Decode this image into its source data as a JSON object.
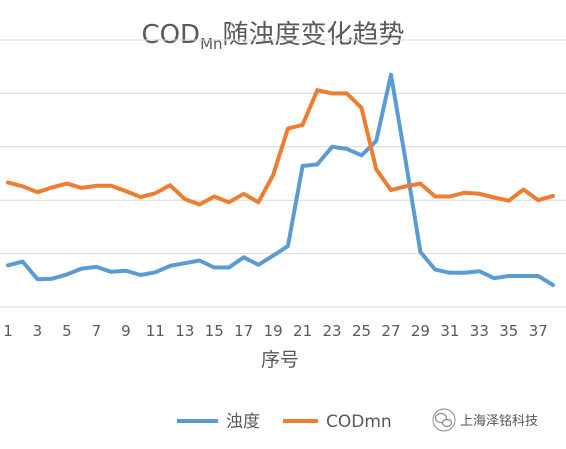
{
  "colors": {
    "turbidity": "#5B9BD5",
    "codmn": "#ED7D31",
    "grid": "#D9D9D9",
    "text": "#595959"
  },
  "watermark": {
    "icon": "wechat-icon",
    "text": "上海泽铭科技"
  },
  "chart_data": {
    "type": "line",
    "title": {
      "main": "COD",
      "subscript": "Mn",
      "rest": "随浊度变化趋势"
    },
    "xlabel": "序号",
    "ylabel": "",
    "x": [
      1,
      2,
      3,
      4,
      5,
      6,
      7,
      8,
      9,
      10,
      11,
      12,
      13,
      14,
      15,
      16,
      17,
      18,
      19,
      20,
      21,
      22,
      23,
      24,
      25,
      26,
      27,
      28,
      29,
      30,
      31,
      32,
      33,
      34,
      35,
      36,
      37,
      38
    ],
    "x_tick_labels": [
      "1",
      "3",
      "5",
      "7",
      "9",
      "11",
      "13",
      "15",
      "17",
      "19",
      "21",
      "23",
      "25",
      "27",
      "29",
      "31",
      "33",
      "35",
      "37"
    ],
    "ylim": [
      0,
      5
    ],
    "y_gridlines": [
      1,
      2,
      3,
      4,
      5
    ],
    "y_tick_labels_shown": false,
    "grid": true,
    "legend": "bottom",
    "series": [
      {
        "name": "浊度",
        "values": [
          0.78,
          0.85,
          0.52,
          0.53,
          0.61,
          0.72,
          0.75,
          0.66,
          0.68,
          0.6,
          0.65,
          0.77,
          0.82,
          0.87,
          0.74,
          0.74,
          0.93,
          0.79,
          0.96,
          1.14,
          2.64,
          2.67,
          3.0,
          2.96,
          2.84,
          3.11,
          4.35,
          2.73,
          1.03,
          0.7,
          0.64,
          0.64,
          0.67,
          0.54,
          0.58,
          0.58,
          0.58,
          0.41
        ]
      },
      {
        "name": "CODmn",
        "values": [
          2.33,
          2.26,
          2.15,
          2.24,
          2.31,
          2.23,
          2.27,
          2.27,
          2.17,
          2.06,
          2.13,
          2.28,
          2.02,
          1.92,
          2.07,
          1.96,
          2.12,
          1.96,
          2.47,
          3.34,
          3.41,
          4.06,
          4.0,
          4.0,
          3.73,
          2.58,
          2.19,
          2.26,
          2.31,
          2.07,
          2.07,
          2.14,
          2.12,
          2.05,
          1.99,
          2.2,
          2.0,
          2.08
        ]
      }
    ]
  }
}
